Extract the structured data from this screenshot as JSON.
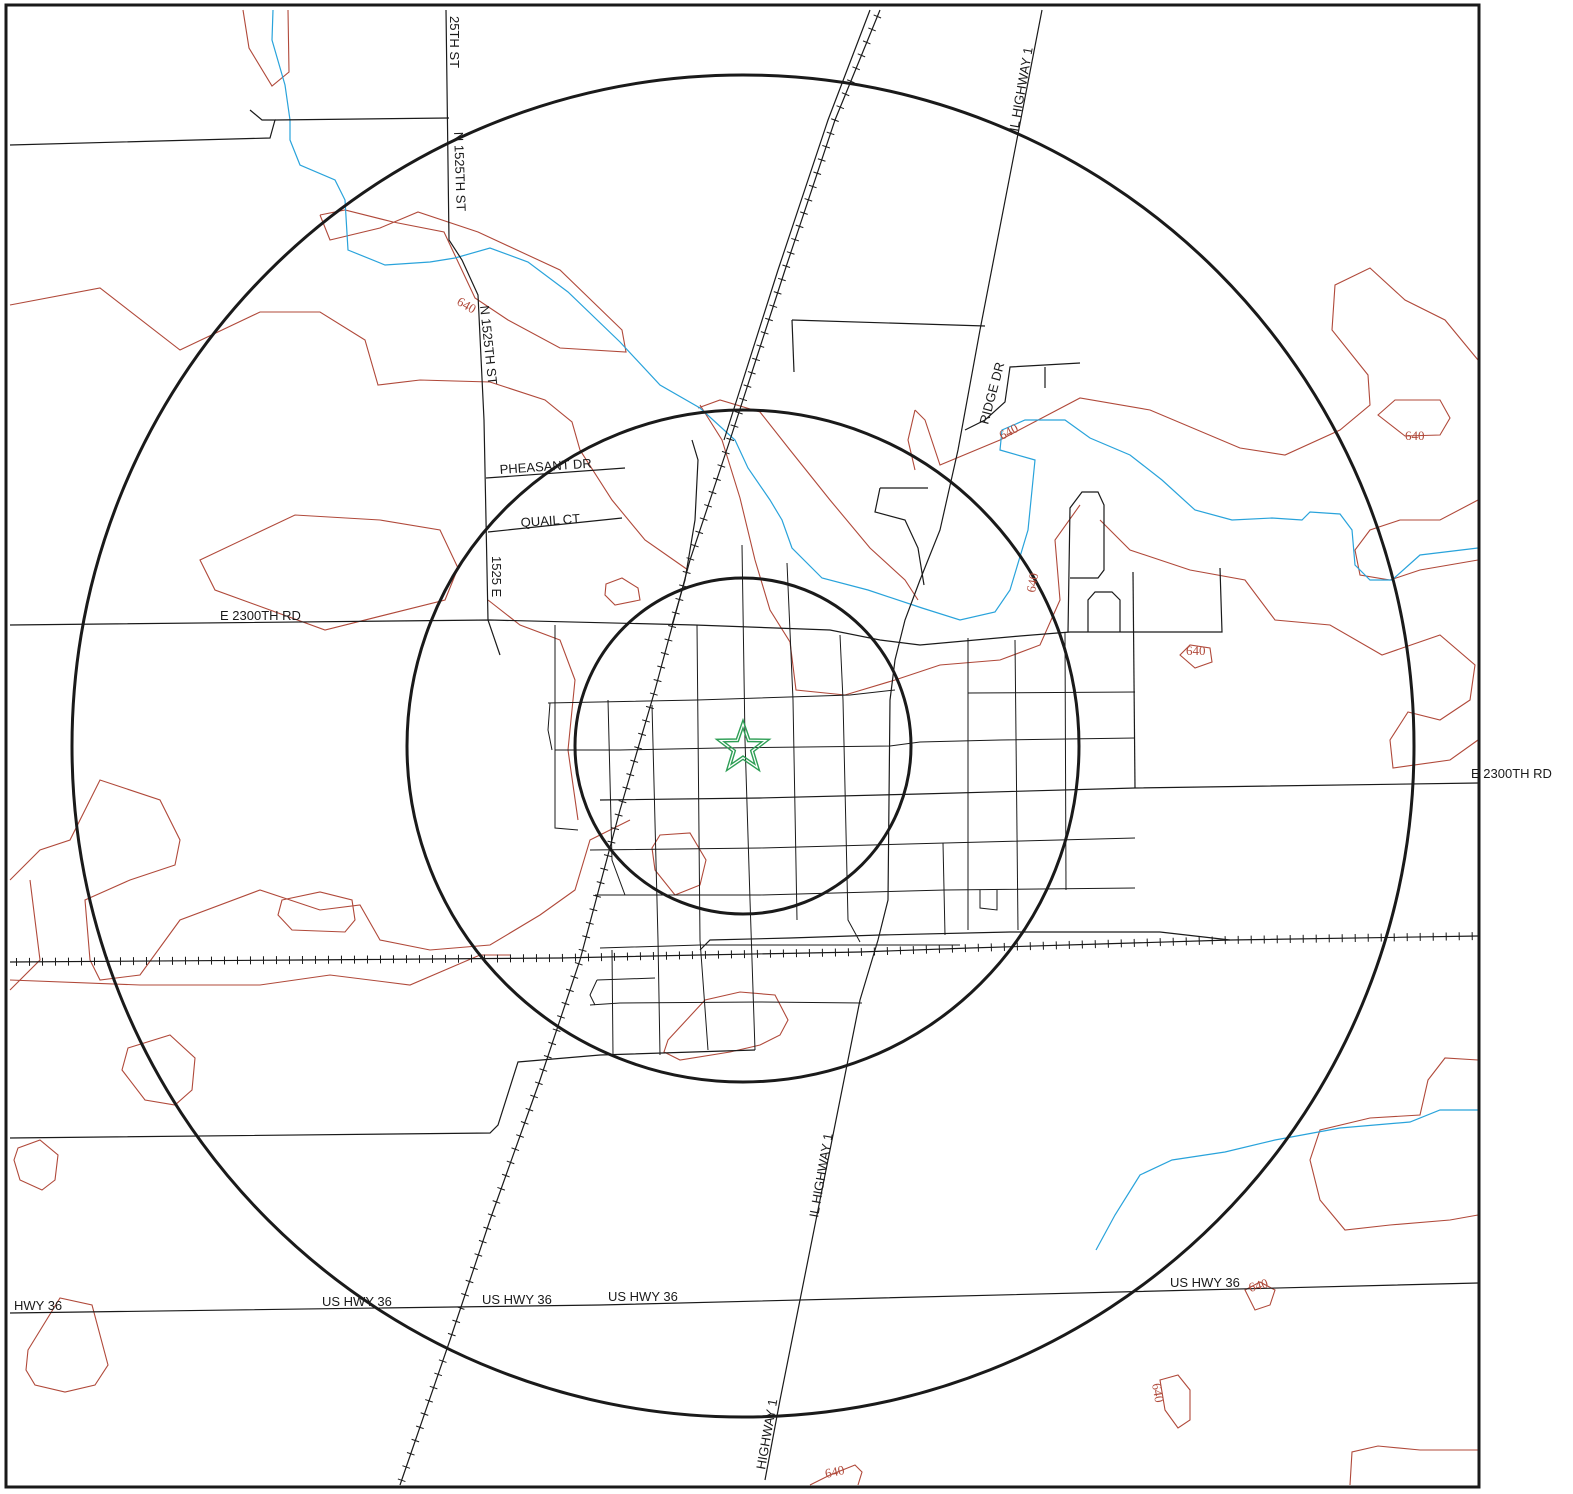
{
  "map": {
    "road_labels": {
      "n25th": "25TH ST",
      "n1525a": "N 1525TH ST",
      "n1525b": "N 1525TH ST",
      "pheasant": "PHEASANT DR",
      "quail": "QUAIL CT",
      "e1525": "1525 E",
      "e2300w": "E 2300TH RD",
      "e2300e": "E 2300TH RD",
      "ridge": "RIDGE DR",
      "il1north": "IL HIGHWAY 1",
      "il1mid": "IL HIGHWAY 1",
      "il1south": "HIGHWAY 1",
      "hwy36w": "HWY 36",
      "us36a": "US HWY 36",
      "us36b": "US HWY 36",
      "us36c": "US HWY 36",
      "us36d": "US HWY 36"
    },
    "contour_labels": [
      "640",
      "640",
      "640",
      "640",
      "640",
      "640",
      "640",
      "640"
    ],
    "colors": {
      "road": "#1a1a1a",
      "river": "#29a3db",
      "contour": "#b0493a",
      "marker": "#2e9e55"
    },
    "marker_icon": "star-icon"
  }
}
